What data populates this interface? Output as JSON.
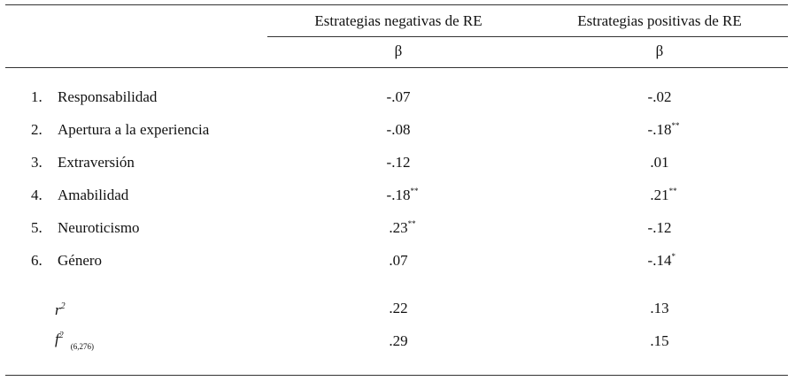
{
  "header": {
    "columns": [
      "Estrategias negativas de RE",
      "Estrategias positivas de RE"
    ],
    "subheader": [
      "β",
      "β"
    ]
  },
  "rows": [
    {
      "number": "1.",
      "label": "Responsabilidad",
      "cells": [
        {
          "value": "-.07"
        },
        {
          "value": "-.02"
        }
      ]
    },
    {
      "number": "2.",
      "label": "Apertura a la experiencia",
      "cells": [
        {
          "value": "-.08"
        },
        {
          "value": "-.18",
          "sup": "**"
        }
      ]
    },
    {
      "number": "3.",
      "label": "Extraversión",
      "cells": [
        {
          "value": "-.12"
        },
        {
          "value": ".01"
        }
      ]
    },
    {
      "number": "4.",
      "label": "Amabilidad",
      "cells": [
        {
          "value": "-.18",
          "sup": "**"
        },
        {
          "value": ".21",
          "sup": "**"
        }
      ]
    },
    {
      "number": "5.",
      "label": "Neuroticismo",
      "cells": [
        {
          "value": ".23",
          "sup": "**"
        },
        {
          "value": "-.12"
        }
      ]
    },
    {
      "number": "6.",
      "label": "Género",
      "cells": [
        {
          "value": ".07"
        },
        {
          "value": "-.14",
          "sup": "*"
        }
      ]
    }
  ],
  "stats": [
    {
      "symbol": "r",
      "sup": "2",
      "cells": [
        {
          "value": ".22"
        },
        {
          "value": ".13"
        }
      ]
    },
    {
      "symbol": "f",
      "sup": "2",
      "sub": "(6,276)",
      "cells": [
        {
          "value": ".29"
        },
        {
          "value": ".15"
        }
      ]
    }
  ]
}
